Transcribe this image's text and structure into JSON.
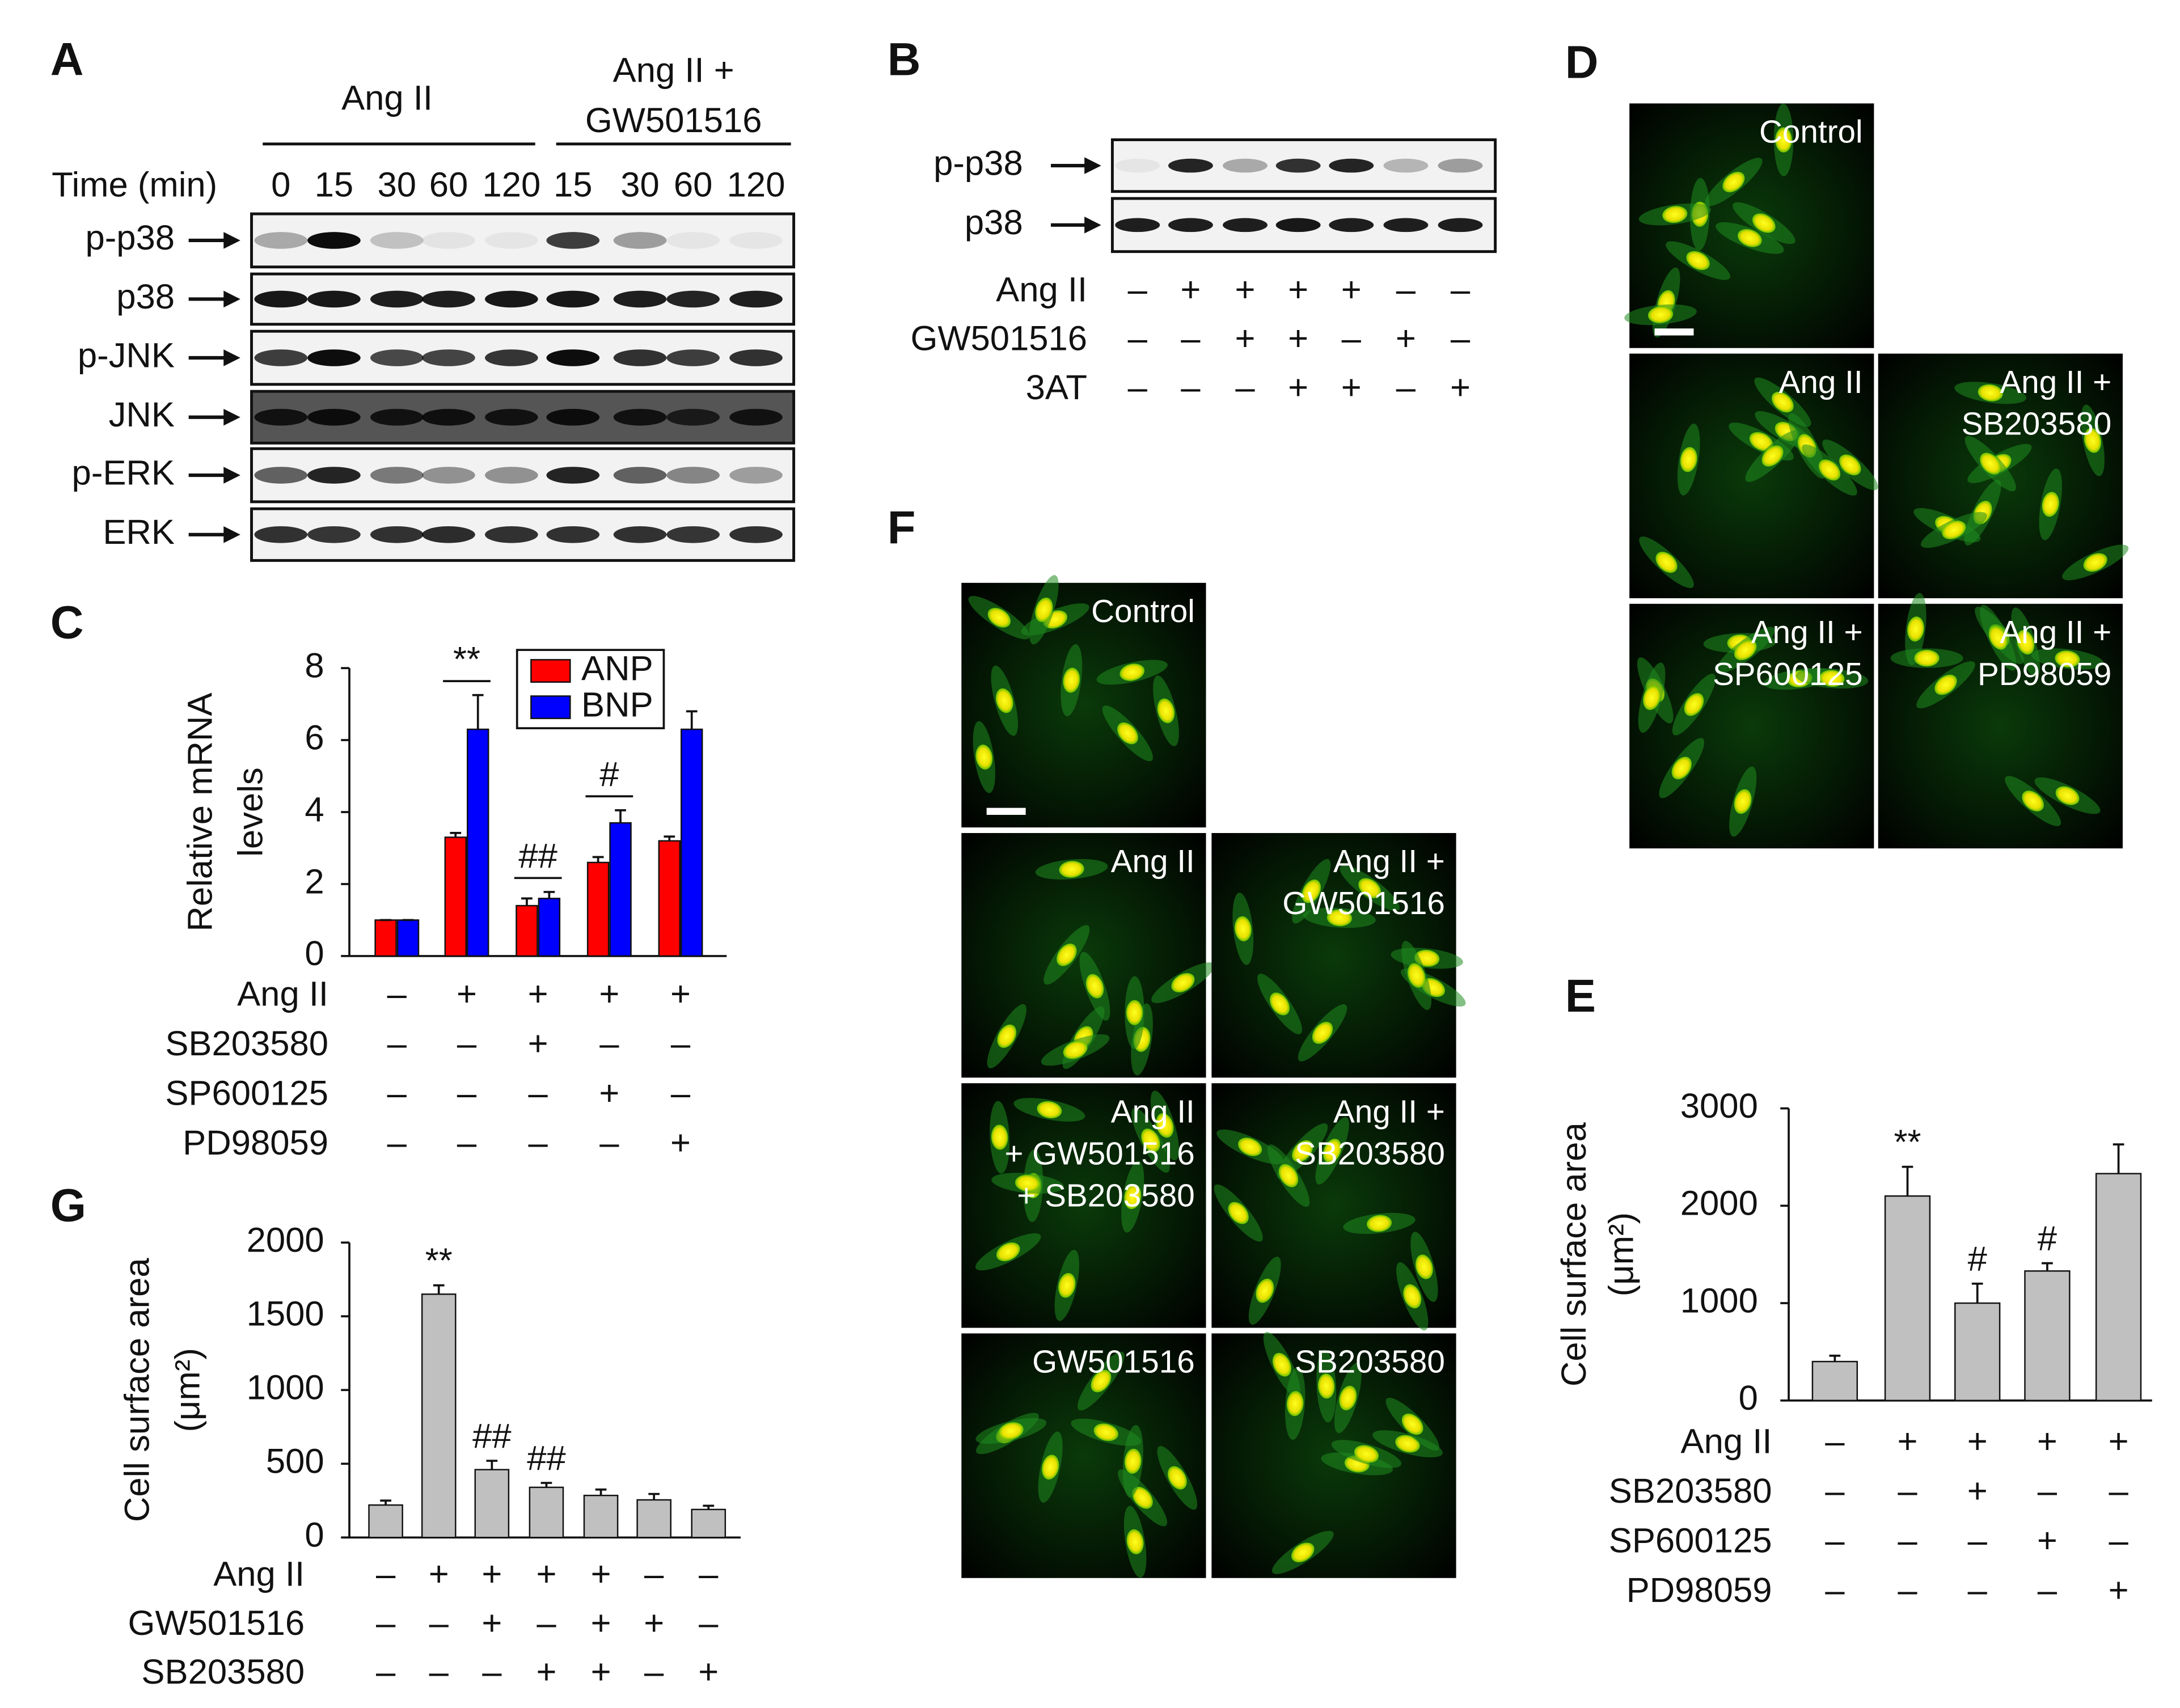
{
  "panel_a": {
    "letter": "A",
    "group_1": "Ang II",
    "group_2": [
      "Ang II +",
      "GW501516"
    ],
    "time_label": "Time (min)",
    "times": [
      0,
      15,
      30,
      60,
      120,
      15,
      30,
      60,
      120
    ],
    "blots": [
      "p-p38",
      "p38",
      "p-JNK",
      "JNK",
      "p-ERK",
      "ERK"
    ]
  },
  "panel_b": {
    "letter": "B",
    "blots": [
      "p-p38",
      "p38"
    ],
    "conditions": [
      {
        "label": "Ang II",
        "signs": [
          "–",
          "+",
          "+",
          "+",
          "+",
          "–",
          "–"
        ]
      },
      {
        "label": "GW501516",
        "signs": [
          "–",
          "–",
          "+",
          "+",
          "–",
          "+",
          "–"
        ]
      },
      {
        "label": "3AT",
        "signs": [
          "–",
          "–",
          "–",
          "+",
          "+",
          "–",
          "+"
        ]
      }
    ]
  },
  "panel_d": {
    "letter": "D",
    "images": [
      [
        "Control"
      ],
      [
        "Ang II"
      ],
      [
        "Ang II +",
        "SB203580"
      ],
      [
        "Ang II +",
        "SP600125"
      ],
      [
        "Ang II +",
        "PD98059"
      ]
    ]
  },
  "panel_f": {
    "letter": "F",
    "images": [
      [
        "Control"
      ],
      [
        "Ang II"
      ],
      [
        "Ang II +",
        "GW501516"
      ],
      [
        "Ang II",
        "+ GW501516",
        "+ SB203580"
      ],
      [
        "Ang II +",
        "SB203580"
      ],
      [
        "GW501516"
      ],
      [
        "SB203580"
      ]
    ]
  },
  "chart_data": [
    {
      "type": "bar",
      "letter": "C",
      "y_label": [
        "Relative mRNA",
        "levels"
      ],
      "legend": "top",
      "series": [
        {
          "name": "ANP",
          "color": "#ff0000",
          "values": [
            1,
            3.3,
            1.4,
            2.6,
            3.2
          ],
          "errors": [
            0,
            0.12,
            0.2,
            0.15,
            0.12
          ]
        },
        {
          "name": "BNP",
          "color": "#0000ff",
          "values": [
            1,
            6.3,
            1.6,
            3.7,
            6.3
          ],
          "errors": [
            0,
            0.95,
            0.18,
            0.35,
            0.5
          ]
        }
      ],
      "annotations": [
        null,
        "**",
        "##",
        "#",
        null
      ],
      "ylim": [
        0,
        8
      ],
      "yticks": [
        0,
        2,
        4,
        6,
        8
      ],
      "conditions": [
        {
          "label": "Ang II",
          "signs": [
            "–",
            "+",
            "+",
            "+",
            "+"
          ]
        },
        {
          "label": "SB203580",
          "signs": [
            "–",
            "–",
            "+",
            "–",
            "–"
          ]
        },
        {
          "label": "SP600125",
          "signs": [
            "–",
            "–",
            "–",
            "+",
            "–"
          ]
        },
        {
          "label": "PD98059",
          "signs": [
            "–",
            "–",
            "–",
            "–",
            "+"
          ]
        }
      ]
    },
    {
      "type": "bar",
      "letter": "E",
      "y_label": [
        "Cell surface area",
        "(μm²)"
      ],
      "color": "#c0c0c0",
      "values": [
        400,
        2100,
        1000,
        1330,
        2330
      ],
      "errors": [
        60,
        300,
        200,
        80,
        300
      ],
      "annotations": [
        null,
        "**",
        "#",
        "#",
        null
      ],
      "ylim": [
        0,
        3000
      ],
      "yticks": [
        0,
        1000,
        2000,
        3000
      ],
      "conditions": [
        {
          "label": "Ang II",
          "signs": [
            "–",
            "+",
            "+",
            "+",
            "+"
          ]
        },
        {
          "label": "SB203580",
          "signs": [
            "–",
            "–",
            "+",
            "–",
            "–"
          ]
        },
        {
          "label": "SP600125",
          "signs": [
            "–",
            "–",
            "–",
            "+",
            "–"
          ]
        },
        {
          "label": "PD98059",
          "signs": [
            "–",
            "–",
            "–",
            "–",
            "+"
          ]
        }
      ]
    },
    {
      "type": "bar",
      "letter": "G",
      "y_label": [
        "Cell surface area",
        "(μm²)"
      ],
      "color": "#c0c0c0",
      "values": [
        220,
        1650,
        460,
        340,
        285,
        255,
        190
      ],
      "errors": [
        30,
        60,
        60,
        30,
        40,
        40,
        25
      ],
      "annotations": [
        null,
        "**",
        "##",
        "##",
        null,
        null,
        null
      ],
      "ylim": [
        0,
        2000
      ],
      "yticks": [
        0,
        500,
        1000,
        1500,
        2000
      ],
      "conditions": [
        {
          "label": "Ang II",
          "signs": [
            "–",
            "+",
            "+",
            "+",
            "+",
            "–",
            "–"
          ]
        },
        {
          "label": "GW501516",
          "signs": [
            "–",
            "–",
            "+",
            "–",
            "+",
            "+",
            "–"
          ]
        },
        {
          "label": "SB203580",
          "signs": [
            "–",
            "–",
            "–",
            "+",
            "+",
            "–",
            "+"
          ]
        }
      ]
    }
  ]
}
